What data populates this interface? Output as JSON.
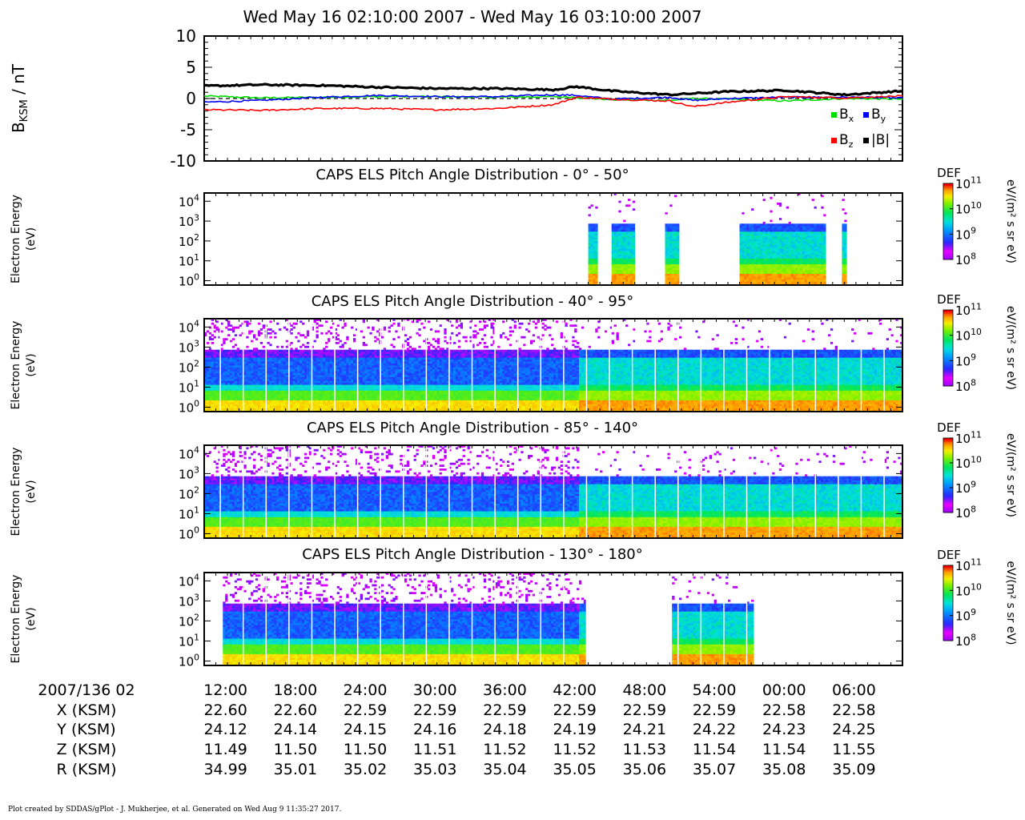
{
  "title": "Wed May 16 02:10:00 2007 - Wed May 16 03:10:00 2007",
  "footer": "Plot created by SDDAS/gPlot - J. Mukherjee, et al.  Generated on Wed Aug 9 11:35:27 2017.",
  "mag_panel": {
    "ylabel_main": "B",
    "ylabel_sub": "KSM",
    "ylabel_unit": " / nT",
    "y_ticks": [
      "10",
      "5",
      "0",
      "-5",
      "-10"
    ],
    "legend": [
      {
        "label": "B",
        "sub": "x",
        "color": "#00dd00"
      },
      {
        "label": "B",
        "sub": "y",
        "color": "#0000ff"
      },
      {
        "label": "B",
        "sub": "z",
        "color": "#ff0000"
      },
      {
        "label": "|B|",
        "sub": "",
        "color": "#000000"
      }
    ]
  },
  "spec_panels": [
    {
      "title": "CAPS ELS Pitch Angle Distribution - 0° - 50°"
    },
    {
      "title": "CAPS ELS Pitch Angle Distribution - 40° - 95°"
    },
    {
      "title": "CAPS ELS Pitch Angle Distribution - 85° - 140°"
    },
    {
      "title": "CAPS ELS Pitch Angle Distribution - 130° - 180°"
    }
  ],
  "spec_ylabel_line1": "Electron Energy",
  "spec_ylabel_line2": "(eV)",
  "spec_yticks": [
    {
      "base": "10",
      "exp": "4"
    },
    {
      "base": "10",
      "exp": "3"
    },
    {
      "base": "10",
      "exp": "2"
    },
    {
      "base": "10",
      "exp": "1"
    },
    {
      "base": "10",
      "exp": "0"
    }
  ],
  "colorbar": {
    "label": "DEF",
    "unit": "eV/(m² s sr eV)",
    "ticks": [
      {
        "base": "10",
        "exp": "11"
      },
      {
        "base": "10",
        "exp": "10"
      },
      {
        "base": "10",
        "exp": "9"
      },
      {
        "base": "10",
        "exp": "8"
      }
    ]
  },
  "ephemeris": {
    "header": "2007/136 02",
    "row_labels": [
      "X (KSM)",
      "Y (KSM)",
      "Z (KSM)",
      "R (KSM)"
    ],
    "times": [
      "12:00",
      "18:00",
      "24:00",
      "30:00",
      "36:00",
      "42:00",
      "48:00",
      "54:00",
      "00:00",
      "06:00"
    ],
    "X": [
      "22.60",
      "22.60",
      "22.59",
      "22.59",
      "22.59",
      "22.59",
      "22.59",
      "22.59",
      "22.58",
      "22.58"
    ],
    "Y": [
      "24.12",
      "24.14",
      "24.15",
      "24.16",
      "24.18",
      "24.19",
      "24.21",
      "24.22",
      "24.23",
      "24.25"
    ],
    "Z": [
      "11.49",
      "11.50",
      "11.50",
      "11.51",
      "11.52",
      "11.52",
      "11.53",
      "11.54",
      "11.54",
      "11.55"
    ],
    "R": [
      "34.99",
      "35.01",
      "35.02",
      "35.03",
      "35.04",
      "35.05",
      "35.06",
      "35.07",
      "35.08",
      "35.09"
    ]
  },
  "chart_data": [
    {
      "type": "line",
      "title": "Wed May 16 02:10:00 2007 - Wed May 16 03:10:00 2007",
      "ylabel": "BKSM / nT",
      "xlabel": "",
      "ylim": [
        -10,
        10
      ],
      "x": [
        "02:10",
        "02:15",
        "02:20",
        "02:25",
        "02:30",
        "02:35",
        "02:40",
        "02:42",
        "02:45",
        "02:50",
        "02:52",
        "02:55",
        "03:00",
        "03:05",
        "03:10"
      ],
      "series": [
        {
          "name": "Bx",
          "values": [
            0.4,
            0.1,
            0.2,
            0.3,
            0.3,
            0.2,
            0.3,
            0.2,
            -0.2,
            -0.3,
            0.0,
            -0.1,
            -0.4,
            0.0,
            -0.1
          ]
        },
        {
          "name": "By",
          "values": [
            -0.6,
            -0.3,
            0.2,
            0.5,
            0.3,
            0.3,
            0.6,
            0.5,
            -0.1,
            0.2,
            -0.3,
            0.0,
            0.2,
            0.2,
            0.1
          ]
        },
        {
          "name": "Bz",
          "values": [
            -1.8,
            -1.9,
            -1.6,
            -1.6,
            -1.8,
            -1.6,
            -1.0,
            0.2,
            -0.1,
            -0.4,
            -1.3,
            -0.6,
            0.3,
            0.1,
            0.4
          ]
        },
        {
          "name": "|B|",
          "values": [
            2.0,
            2.2,
            2.1,
            1.8,
            1.6,
            1.6,
            1.4,
            1.9,
            1.2,
            0.6,
            0.8,
            1.1,
            1.3,
            0.6,
            1.2
          ]
        }
      ]
    },
    {
      "type": "heatmap",
      "title": "CAPS ELS Pitch Angle Distribution - 0° - 50°",
      "ylabel": "Electron Energy (eV)",
      "ylim": [
        0.6,
        26000
      ],
      "colorbar": "DEF eV/(m² s sr eV)",
      "crange": [
        100000000.0,
        100000000000.0
      ],
      "data_intervals": [
        [
          "02:43:00",
          "02:43:40"
        ],
        [
          "02:45:00",
          "02:47:00"
        ],
        [
          "02:49:30",
          "02:50:40"
        ],
        [
          "02:56:00",
          "03:03:20"
        ],
        [
          "03:04:40",
          "03:05:10"
        ]
      ]
    },
    {
      "type": "heatmap",
      "title": "CAPS ELS Pitch Angle Distribution - 40° - 95°",
      "ylabel": "Electron Energy (eV)",
      "ylim": [
        0.6,
        26000
      ],
      "colorbar": "DEF eV/(m² s sr eV)",
      "crange": [
        100000000.0,
        100000000000.0
      ],
      "data_intervals": [
        [
          "02:10:00",
          "03:10:00"
        ]
      ]
    },
    {
      "type": "heatmap",
      "title": "CAPS ELS Pitch Angle Distribution - 85° - 140°",
      "ylabel": "Electron Energy (eV)",
      "ylim": [
        0.6,
        26000
      ],
      "colorbar": "DEF eV/(m² s sr eV)",
      "crange": [
        100000000.0,
        100000000000.0
      ],
      "data_intervals": [
        [
          "02:10:00",
          "03:10:00"
        ]
      ]
    },
    {
      "type": "heatmap",
      "title": "CAPS ELS Pitch Angle Distribution - 130° - 180°",
      "ylabel": "Electron Energy (eV)",
      "ylim": [
        0.6,
        26000
      ],
      "colorbar": "DEF eV/(m² s sr eV)",
      "crange": [
        100000000.0,
        100000000000.0
      ],
      "data_intervals": [
        [
          "02:11:30",
          "02:42:40"
        ],
        [
          "02:50:10",
          "02:57:10"
        ]
      ]
    }
  ]
}
